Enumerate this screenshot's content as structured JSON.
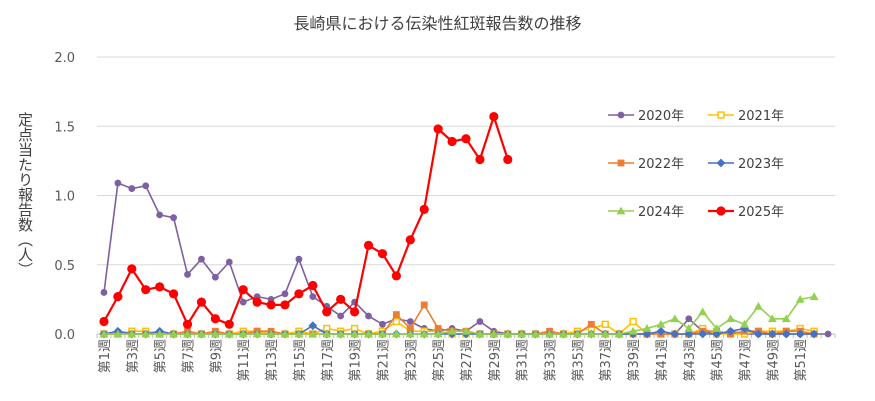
{
  "chart_data": {
    "type": "line",
    "title": "長崎県における伝染性紅斑報告数の推移",
    "ylabel": "定点当たり報告数（人）",
    "xlabel": "",
    "ylim": [
      0,
      2.0
    ],
    "yticks": [
      "0.0",
      "0.5",
      "1.0",
      "1.5",
      "2.0"
    ],
    "grid": true,
    "legend_position": "right",
    "categories": [
      "第1週",
      "第2週",
      "第3週",
      "第4週",
      "第5週",
      "第6週",
      "第7週",
      "第8週",
      "第9週",
      "第10週",
      "第11週",
      "第12週",
      "第13週",
      "第14週",
      "第15週",
      "第16週",
      "第17週",
      "第18週",
      "第19週",
      "第20週",
      "第21週",
      "第22週",
      "第23週",
      "第24週",
      "第25週",
      "第26週",
      "第27週",
      "第28週",
      "第29週",
      "第30週",
      "第31週",
      "第32週",
      "第33週",
      "第34週",
      "第35週",
      "第36週",
      "第37週",
      "第38週",
      "第39週",
      "第40週",
      "第41週",
      "第42週",
      "第43週",
      "第44週",
      "第45週",
      "第46週",
      "第47週",
      "第48週",
      "第49週",
      "第50週",
      "第51週",
      "第52週",
      "第53週"
    ],
    "xtick_labels": [
      "第1週",
      "第3週",
      "第5週",
      "第7週",
      "第9週",
      "第11週",
      "第13週",
      "第15週",
      "第17週",
      "第19週",
      "第21週",
      "第23週",
      "第25週",
      "第27週",
      "第29週",
      "第31週",
      "第33週",
      "第35週",
      "第37週",
      "第39週",
      "第41週",
      "第43週",
      "第45週",
      "第47週",
      "第49週",
      "第51週"
    ],
    "series": [
      {
        "name": "2020年",
        "color": "#7e60a0",
        "marker": "circle-filled",
        "values": [
          0.3,
          1.09,
          1.05,
          1.07,
          0.86,
          0.84,
          0.43,
          0.54,
          0.41,
          0.52,
          0.23,
          0.27,
          0.25,
          0.29,
          0.54,
          0.27,
          0.2,
          0.13,
          0.23,
          0.13,
          0.07,
          0.11,
          0.09,
          0.04,
          0.02,
          0.04,
          0.02,
          0.09,
          0.02,
          0.0,
          0.0,
          0.0,
          0.0,
          0.0,
          0.0,
          0.0,
          0.0,
          0.0,
          0.0,
          0.0,
          0.0,
          0.0,
          0.11,
          0.02,
          0.0,
          0.02,
          0.0,
          0.0,
          0.0,
          0.0,
          0.0,
          0.0,
          0.0
        ]
      },
      {
        "name": "2021年",
        "color": "#ffc000",
        "marker": "square-open",
        "values": [
          0.0,
          0.0,
          0.02,
          0.02,
          0.0,
          0.0,
          0.0,
          0.0,
          0.0,
          0.0,
          0.02,
          0.02,
          0.0,
          0.0,
          0.02,
          0.0,
          0.04,
          0.02,
          0.04,
          0.0,
          0.02,
          0.09,
          0.02,
          0.02,
          0.02,
          0.0,
          0.0,
          0.0,
          0.0,
          0.0,
          0.0,
          0.0,
          0.0,
          0.0,
          0.02,
          0.04,
          0.07,
          0.0,
          0.09,
          0.0,
          0.0,
          0.0,
          0.0,
          0.04,
          0.0,
          0.0,
          0.0,
          0.02,
          0.02,
          0.02,
          0.04,
          0.02,
          null
        ]
      },
      {
        "name": "2022年",
        "color": "#ed7d31",
        "marker": "square-filled",
        "values": [
          0.0,
          0.0,
          0.0,
          0.0,
          0.0,
          0.0,
          0.02,
          0.0,
          0.02,
          0.0,
          0.0,
          0.02,
          0.02,
          0.0,
          0.0,
          0.0,
          0.0,
          0.0,
          0.0,
          0.0,
          0.0,
          0.14,
          0.04,
          0.21,
          0.04,
          0.02,
          0.02,
          0.0,
          0.0,
          0.0,
          0.0,
          0.0,
          0.02,
          0.0,
          0.0,
          0.07,
          0.0,
          0.0,
          0.0,
          0.0,
          0.0,
          0.0,
          0.0,
          0.02,
          0.02,
          0.0,
          0.02,
          0.02,
          0.0,
          0.02,
          0.02,
          0.0,
          null
        ]
      },
      {
        "name": "2023年",
        "color": "#4472c4",
        "marker": "diamond-filled",
        "values": [
          0.0,
          0.02,
          0.0,
          0.0,
          0.02,
          0.0,
          0.0,
          0.0,
          0.0,
          0.0,
          0.0,
          0.0,
          0.0,
          0.0,
          0.0,
          0.06,
          0.0,
          0.0,
          0.0,
          0.0,
          0.0,
          0.0,
          0.0,
          0.0,
          0.0,
          0.0,
          0.0,
          0.0,
          0.0,
          0.0,
          0.0,
          0.0,
          0.0,
          0.0,
          0.0,
          0.0,
          0.0,
          0.0,
          0.0,
          0.0,
          0.02,
          0.0,
          0.0,
          0.0,
          0.0,
          0.02,
          0.04,
          0.0,
          0.0,
          0.0,
          0.0,
          0.0,
          null
        ]
      },
      {
        "name": "2024年",
        "color": "#92d050",
        "marker": "triangle-filled",
        "values": [
          0.0,
          0.0,
          0.0,
          0.0,
          0.0,
          0.0,
          0.0,
          0.0,
          0.0,
          0.0,
          0.0,
          0.0,
          0.0,
          0.0,
          0.0,
          0.0,
          0.0,
          0.0,
          0.0,
          0.0,
          0.0,
          0.0,
          0.0,
          0.0,
          0.0,
          0.02,
          0.02,
          0.0,
          0.0,
          0.0,
          0.0,
          0.0,
          0.0,
          0.0,
          0.0,
          0.0,
          0.0,
          0.0,
          0.02,
          0.04,
          0.07,
          0.11,
          0.04,
          0.16,
          0.04,
          0.11,
          0.07,
          0.2,
          0.11,
          0.11,
          0.25,
          0.27,
          null
        ]
      },
      {
        "name": "2025年",
        "color": "#ff0000",
        "marker": "circle-filled",
        "values": [
          0.09,
          0.27,
          0.47,
          0.32,
          0.34,
          0.29,
          0.07,
          0.23,
          0.11,
          0.07,
          0.32,
          0.23,
          0.21,
          0.21,
          0.29,
          0.35,
          0.16,
          0.25,
          0.16,
          0.64,
          0.58,
          0.42,
          0.68,
          0.9,
          1.48,
          1.39,
          1.41,
          1.26,
          1.57,
          1.26,
          null,
          null,
          null,
          null,
          null,
          null,
          null,
          null,
          null,
          null,
          null,
          null,
          null,
          null,
          null,
          null,
          null,
          null,
          null,
          null,
          null,
          null,
          null
        ]
      }
    ]
  }
}
